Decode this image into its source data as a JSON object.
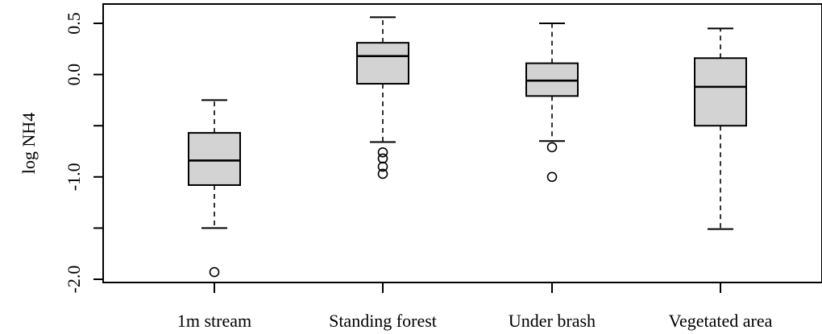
{
  "chart_data": {
    "type": "boxplot",
    "title": "",
    "xlabel": "",
    "ylabel": "log NH4",
    "ylim": [
      -2.0,
      0.5
    ],
    "yticks": [
      {
        "value": 0.5,
        "label": "0.5"
      },
      {
        "value": 0.0,
        "label": "0.0"
      },
      {
        "value": -0.5,
        "label": ""
      },
      {
        "value": -1.0,
        "label": "-1.0"
      },
      {
        "value": -1.5,
        "label": ""
      },
      {
        "value": -2.0,
        "label": "-2.0"
      }
    ],
    "grid": false,
    "box_fill": "#d3d3d3",
    "categories": [
      "1m stream",
      "Standing forest",
      "Under brash",
      "Vegetated area"
    ],
    "boxes": [
      {
        "category": "1m stream",
        "whisker_low": -1.5,
        "q1": -1.08,
        "median": -0.84,
        "q3": -0.57,
        "whisker_high": -0.25,
        "outliers": [
          -1.93
        ]
      },
      {
        "category": "Standing forest",
        "whisker_low": -0.66,
        "q1": -0.09,
        "median": 0.18,
        "q3": 0.31,
        "whisker_high": 0.56,
        "outliers": [
          -0.76,
          -0.82,
          -0.9,
          -0.97
        ]
      },
      {
        "category": "Under brash",
        "whisker_low": -0.65,
        "q1": -0.21,
        "median": -0.06,
        "q3": 0.11,
        "whisker_high": 0.5,
        "outliers": [
          -0.71,
          -1.0
        ]
      },
      {
        "category": "Vegetated area",
        "whisker_low": -1.51,
        "q1": -0.5,
        "median": -0.12,
        "q3": 0.16,
        "whisker_high": 0.45,
        "outliers": []
      }
    ]
  }
}
